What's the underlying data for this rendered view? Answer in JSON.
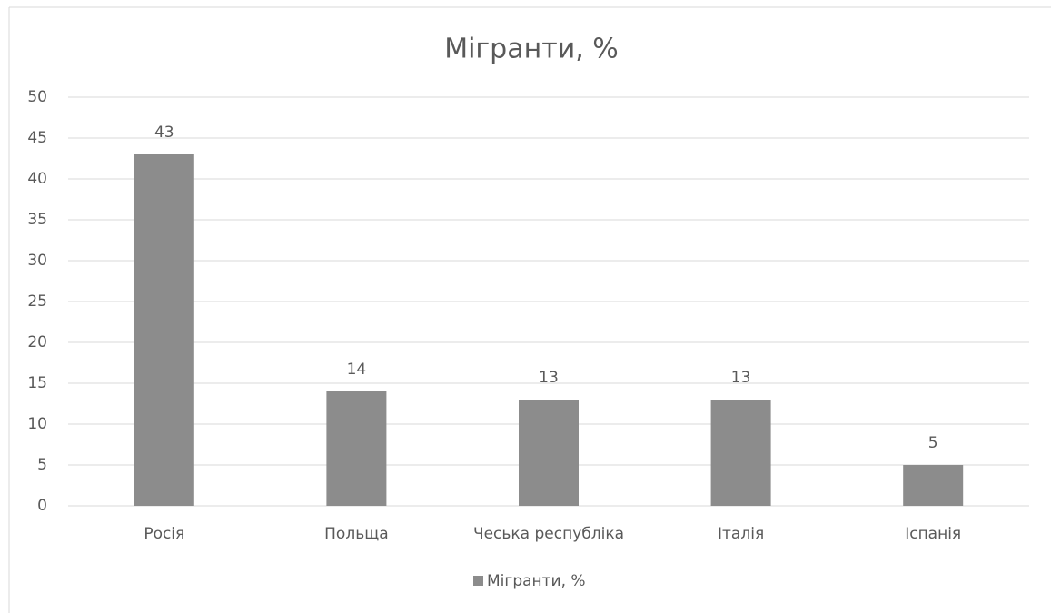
{
  "chart_data": {
    "type": "bar",
    "title": "Мігранти, %",
    "categories": [
      "Росія",
      "Польща",
      "Чеська республіка",
      "Італія",
      "Іспанія"
    ],
    "series": [
      {
        "name": "Мігранти, %",
        "color": "#8c8c8c",
        "values": [
          43,
          14,
          13,
          13,
          5
        ]
      }
    ],
    "ylim": [
      0,
      50
    ],
    "yticks": [
      0,
      5,
      10,
      15,
      20,
      25,
      30,
      35,
      40,
      45,
      50
    ],
    "grid": true,
    "legend": "bottom"
  }
}
